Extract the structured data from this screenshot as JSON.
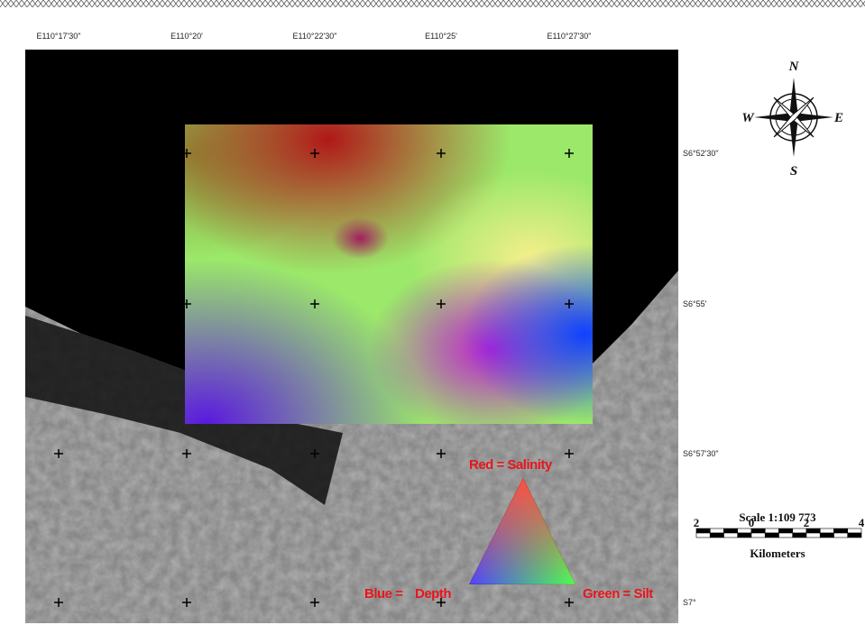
{
  "map": {
    "longitude_labels": [
      "E110°17'30\"",
      "E110°20'",
      "E110°22'30\"",
      "E110°25'",
      "E110°27'30\""
    ],
    "latitude_labels": [
      "S6°52'30\"",
      "S6°55'",
      "S6°57'30\"",
      "S7°"
    ],
    "compass": {
      "north": "N",
      "east": "E",
      "south": "S",
      "west": "W"
    },
    "scale": {
      "title": "Scale 1:109 773",
      "ticks": [
        "2",
        "0",
        "2",
        "4"
      ],
      "unit": "Kilometers"
    },
    "legend": {
      "red": "Red = Salinity",
      "green": "Green = Silt",
      "blue": "Depth"
    }
  }
}
